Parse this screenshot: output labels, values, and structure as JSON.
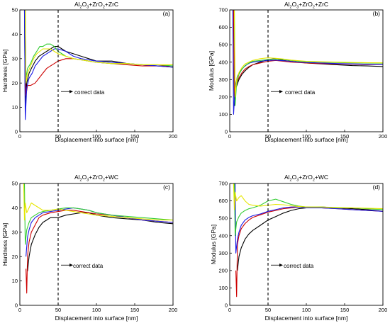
{
  "colors": {
    "black": "#000000",
    "red": "#cc0000",
    "blue": "#1a1ae6",
    "green": "#33cc33",
    "yellow": "#e6e600"
  },
  "chart_data": [
    {
      "type": "line",
      "panel": "a",
      "tag": "(a)",
      "title_main": "Al",
      "title_sub1": "2",
      "title_mid": "O",
      "title_sub2": "3",
      "title_rest": "+ZrO",
      "title_sub3": "2",
      "title_tail": "+ZrC",
      "xlabel": "Displacement into surface [nm]",
      "ylabel": "Hardness [GPa]",
      "xlim": [
        0,
        200
      ],
      "ylim": [
        0,
        50
      ],
      "xticks": [
        "0",
        "50",
        "100",
        "150",
        "200"
      ],
      "yticks": [
        "0",
        "10",
        "20",
        "30",
        "40",
        "50"
      ],
      "annotation": "correct data",
      "cutoff_x": 50,
      "series": [
        {
          "color": "black",
          "x": [
            6,
            7,
            9,
            12,
            15,
            20,
            25,
            30,
            35,
            40,
            45,
            50,
            60,
            70,
            80,
            90,
            100,
            120,
            140,
            160,
            180,
            200
          ],
          "y": [
            50,
            10,
            20,
            24,
            26,
            29,
            31,
            32,
            33,
            34,
            35,
            35,
            33,
            32,
            31,
            30,
            29,
            29,
            28,
            27.5,
            27,
            26.5
          ]
        },
        {
          "color": "red",
          "x": [
            7,
            8,
            10,
            14,
            20,
            25,
            30,
            35,
            40,
            45,
            50,
            60,
            70,
            80,
            90,
            100,
            120,
            140,
            160,
            180,
            200
          ],
          "y": [
            50,
            15,
            19,
            19,
            20,
            22,
            24,
            26,
            27,
            28,
            29,
            30,
            30,
            29.5,
            29,
            28.5,
            28,
            27.5,
            27,
            27,
            27
          ]
        },
        {
          "color": "blue",
          "x": [
            6,
            7,
            9,
            12,
            16,
            20,
            25,
            30,
            35,
            40,
            45,
            50,
            60,
            70,
            80,
            90,
            100,
            120,
            140,
            160,
            180,
            200
          ],
          "y": [
            50,
            5,
            18,
            22,
            24,
            27,
            29,
            31,
            32,
            33,
            34,
            34,
            33,
            31,
            30,
            29.5,
            29,
            28.5,
            28,
            27.5,
            27,
            26.5
          ]
        },
        {
          "color": "green",
          "x": [
            7,
            8,
            10,
            14,
            18,
            22,
            26,
            30,
            35,
            40,
            45,
            50,
            60,
            70,
            80,
            90,
            100,
            120,
            140,
            160,
            180,
            200
          ],
          "y": [
            50,
            22,
            26,
            28,
            31,
            33,
            35,
            35,
            36,
            36,
            35,
            33,
            31,
            30,
            29.5,
            29,
            28.5,
            28,
            28,
            27.5,
            27.5,
            27
          ]
        },
        {
          "color": "yellow",
          "x": [
            7,
            8,
            10,
            14,
            18,
            22,
            26,
            30,
            35,
            40,
            45,
            50,
            60,
            70,
            80,
            90,
            100,
            120,
            140,
            160,
            180,
            200
          ],
          "y": [
            50,
            20,
            24,
            27,
            30,
            32,
            33,
            34,
            34,
            34,
            33,
            32,
            31,
            30,
            29.5,
            29,
            28.5,
            28,
            28,
            27.5,
            27.5,
            27.5
          ]
        }
      ]
    },
    {
      "type": "line",
      "panel": "b",
      "tag": "(b)",
      "title_main": "Al",
      "title_sub1": "2",
      "title_mid": "O",
      "title_sub2": "3",
      "title_rest": "+ZrO",
      "title_sub3": "2",
      "title_tail": "+ZrC",
      "xlabel": "Displacement into surface [nm]",
      "ylabel": "Modulus [GPa]",
      "xlim": [
        0,
        200
      ],
      "ylim": [
        0,
        700
      ],
      "xticks": [
        "0",
        "50",
        "100",
        "150",
        "200"
      ],
      "yticks": [
        "0",
        "100",
        "200",
        "300",
        "400",
        "500",
        "600",
        "700"
      ],
      "annotation": "correct data",
      "cutoff_x": 50,
      "series": [
        {
          "color": "black",
          "x": [
            5,
            6,
            8,
            12,
            16,
            20,
            25,
            30,
            40,
            50,
            60,
            70,
            80,
            90,
            100,
            120,
            140,
            160,
            180,
            200
          ],
          "y": [
            700,
            150,
            250,
            300,
            330,
            350,
            370,
            385,
            400,
            415,
            420,
            410,
            405,
            400,
            395,
            390,
            385,
            380,
            378,
            375
          ]
        },
        {
          "color": "red",
          "x": [
            5,
            6,
            8,
            12,
            16,
            20,
            25,
            30,
            40,
            50,
            60,
            70,
            80,
            90,
            100,
            120,
            140,
            160,
            180,
            200
          ],
          "y": [
            700,
            200,
            270,
            310,
            340,
            360,
            375,
            385,
            395,
            405,
            410,
            405,
            400,
            398,
            395,
            392,
            390,
            388,
            386,
            385
          ]
        },
        {
          "color": "blue",
          "x": [
            4,
            5,
            7,
            10,
            14,
            18,
            22,
            26,
            30,
            40,
            50,
            60,
            70,
            80,
            90,
            100,
            120,
            140,
            160,
            180,
            200
          ],
          "y": [
            700,
            100,
            260,
            320,
            350,
            370,
            385,
            395,
            400,
            405,
            410,
            412,
            408,
            405,
            400,
            398,
            395,
            392,
            390,
            388,
            385
          ]
        },
        {
          "color": "green",
          "x": [
            6,
            7,
            9,
            12,
            16,
            20,
            25,
            30,
            40,
            50,
            60,
            70,
            80,
            90,
            100,
            120,
            140,
            160,
            180,
            200
          ],
          "y": [
            700,
            150,
            280,
            330,
            360,
            380,
            395,
            405,
            410,
            415,
            418,
            415,
            410,
            405,
            402,
            400,
            398,
            396,
            395,
            394
          ]
        },
        {
          "color": "yellow",
          "x": [
            6,
            7,
            9,
            12,
            16,
            20,
            25,
            30,
            40,
            50,
            60,
            70,
            80,
            90,
            100,
            120,
            140,
            160,
            180,
            200
          ],
          "y": [
            700,
            200,
            300,
            340,
            370,
            390,
            400,
            410,
            420,
            425,
            422,
            418,
            412,
            408,
            405,
            402,
            400,
            398,
            397,
            396
          ]
        }
      ]
    },
    {
      "type": "line",
      "panel": "c",
      "tag": "(c)",
      "title_main": "Al",
      "title_sub1": "2",
      "title_mid": "O",
      "title_sub2": "3",
      "title_rest": "+ZrO",
      "title_sub3": "2",
      "title_tail": "+WC",
      "xlabel": "Displacement into surface [nm]",
      "ylabel": "Hardness [GPa]",
      "xlim": [
        0,
        200
      ],
      "ylim": [
        0,
        50
      ],
      "xticks": [
        "0",
        "50",
        "100",
        "150",
        "200"
      ],
      "yticks": [
        "0",
        "10",
        "20",
        "30",
        "40",
        "50"
      ],
      "annotation": "correct data",
      "cutoff_x": 50,
      "series": [
        {
          "color": "black",
          "x": [
            10,
            12,
            15,
            20,
            25,
            30,
            35,
            40,
            50,
            60,
            70,
            80,
            90,
            100,
            120,
            140,
            160,
            180,
            200
          ],
          "y": [
            14,
            20,
            25,
            29,
            32,
            34,
            35,
            36,
            36,
            37,
            37.5,
            38,
            38,
            37,
            36,
            35.5,
            35,
            34,
            33.5
          ]
        },
        {
          "color": "red",
          "x": [
            8,
            9,
            10,
            12,
            15,
            20,
            25,
            30,
            40,
            50,
            60,
            70,
            80,
            90,
            100,
            120,
            140,
            160,
            180,
            200
          ],
          "y": [
            15,
            5,
            20,
            26,
            30,
            33,
            36,
            37,
            38,
            38.5,
            39,
            39,
            38.5,
            38,
            37.5,
            37,
            36,
            35,
            34.5,
            34
          ]
        },
        {
          "color": "blue",
          "x": [
            8,
            10,
            12,
            15,
            20,
            25,
            30,
            40,
            50,
            60,
            70,
            80,
            90,
            100,
            120,
            140,
            160,
            180,
            200
          ],
          "y": [
            20,
            28,
            31,
            34,
            36,
            37,
            38,
            38.5,
            39,
            39.5,
            40,
            39.5,
            39,
            38,
            37,
            36,
            35,
            34.5,
            34
          ]
        },
        {
          "color": "green",
          "x": [
            6,
            7,
            9,
            12,
            15,
            20,
            25,
            30,
            40,
            50,
            60,
            70,
            80,
            90,
            100,
            120,
            140,
            160,
            180,
            200
          ],
          "y": [
            50,
            25,
            31,
            34,
            36,
            37,
            38,
            38.5,
            39,
            39.5,
            40,
            40,
            39.5,
            39,
            38,
            37,
            36.5,
            36,
            35.5,
            35
          ]
        },
        {
          "color": "yellow",
          "x": [
            5,
            6,
            7,
            9,
            12,
            15,
            20,
            25,
            30,
            40,
            50,
            60,
            70,
            80,
            90,
            100,
            120,
            140,
            160,
            180,
            200
          ],
          "y": [
            50,
            35,
            42,
            38,
            40,
            42,
            41,
            40,
            39,
            39,
            39.5,
            39,
            38.5,
            38,
            37.5,
            37,
            36.5,
            36,
            35.5,
            35,
            35
          ]
        }
      ]
    },
    {
      "type": "line",
      "panel": "d",
      "tag": "(d)",
      "title_main": "Al",
      "title_sub1": "2",
      "title_mid": "O",
      "title_sub2": "3",
      "title_rest": "+ZrO",
      "title_sub3": "2",
      "title_tail": "+WC",
      "xlabel": "Displacement into surface [nm]",
      "ylabel": "Modulus [GPa]",
      "xlim": [
        0,
        200
      ],
      "ylim": [
        0,
        700
      ],
      "xticks": [
        "0",
        "50",
        "100",
        "150",
        "200"
      ],
      "yticks": [
        "0",
        "100",
        "200",
        "300",
        "400",
        "500",
        "600",
        "700"
      ],
      "annotation": "correct data",
      "cutoff_x": 50,
      "series": [
        {
          "color": "black",
          "x": [
            10,
            12,
            15,
            20,
            25,
            30,
            40,
            50,
            60,
            70,
            80,
            90,
            100,
            120,
            140,
            160,
            180,
            200
          ],
          "y": [
            200,
            280,
            330,
            380,
            410,
            430,
            460,
            490,
            510,
            530,
            545,
            555,
            560,
            565,
            560,
            555,
            550,
            540
          ]
        },
        {
          "color": "red",
          "x": [
            8,
            9,
            10,
            12,
            15,
            20,
            25,
            30,
            40,
            50,
            60,
            70,
            80,
            90,
            100,
            120,
            140,
            160,
            180,
            200
          ],
          "y": [
            200,
            50,
            350,
            400,
            440,
            470,
            490,
            505,
            520,
            535,
            545,
            555,
            560,
            565,
            565,
            560,
            555,
            550,
            545,
            540
          ]
        },
        {
          "color": "blue",
          "x": [
            7,
            8,
            10,
            12,
            15,
            20,
            25,
            30,
            40,
            50,
            60,
            70,
            80,
            90,
            100,
            120,
            140,
            160,
            180,
            200
          ],
          "y": [
            700,
            300,
            380,
            420,
            460,
            490,
            505,
            515,
            525,
            540,
            550,
            560,
            565,
            565,
            560,
            560,
            555,
            550,
            545,
            540
          ]
        },
        {
          "color": "green",
          "x": [
            6,
            7,
            9,
            12,
            15,
            20,
            25,
            30,
            40,
            50,
            60,
            70,
            80,
            90,
            100,
            120,
            140,
            160,
            180,
            200
          ],
          "y": [
            700,
            400,
            480,
            510,
            530,
            545,
            555,
            560,
            575,
            600,
            610,
            595,
            580,
            570,
            565,
            565,
            560,
            560,
            555,
            550
          ]
        },
        {
          "color": "yellow",
          "x": [
            5,
            6,
            7,
            9,
            12,
            15,
            20,
            25,
            30,
            40,
            50,
            60,
            70,
            80,
            90,
            100,
            120,
            140,
            160,
            180,
            200
          ],
          "y": [
            700,
            550,
            650,
            600,
            620,
            630,
            600,
            580,
            575,
            570,
            575,
            580,
            578,
            572,
            568,
            565,
            565,
            562,
            560,
            558,
            555
          ]
        }
      ]
    }
  ]
}
